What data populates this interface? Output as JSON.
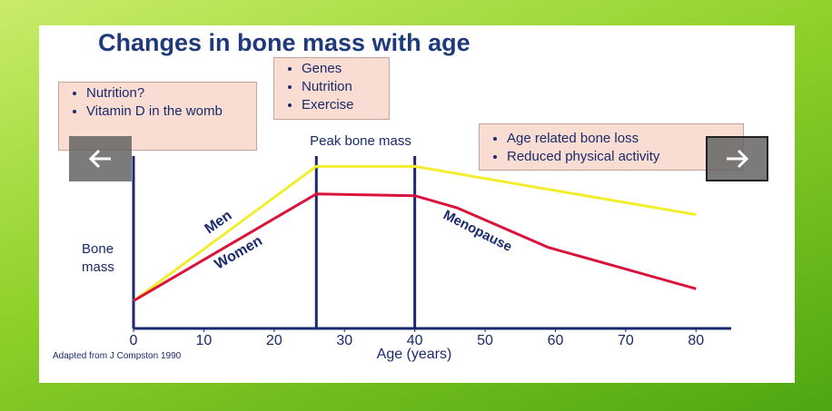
{
  "chart_data": {
    "type": "line",
    "title": "Changes in bone mass with age",
    "x_label": "Age (years)",
    "y_label": "Bone mass",
    "peak_label": "Peak bone mass",
    "source": "Adapted from J Compston 1990",
    "annotation": "Menopause",
    "boxes": [
      [
        "Nutrition?",
        "Vitamin D in the womb"
      ],
      [
        "Genes",
        "Nutrition",
        "Exercise"
      ],
      [
        "Age related bone loss",
        "Reduced physical activity"
      ]
    ],
    "xlim": [
      0,
      85
    ],
    "xticks": [
      0,
      10,
      20,
      30,
      40,
      50,
      60,
      70,
      80
    ],
    "ylim": [
      0,
      100
    ],
    "vlines": [
      26,
      40
    ],
    "series": [
      {
        "name": "Men",
        "color": "#f2ee2e",
        "x": [
          0,
          26,
          40,
          80
        ],
        "values": [
          16,
          94,
          94,
          66
        ]
      },
      {
        "name": "Women",
        "color": "#d8143c",
        "x": [
          0,
          26,
          40,
          46,
          59,
          80
        ],
        "values": [
          16,
          78,
          77,
          70,
          47,
          23
        ]
      }
    ]
  }
}
